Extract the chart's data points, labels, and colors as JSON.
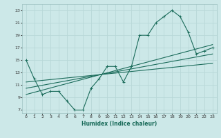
{
  "xlabel": "Humidex (Indice chaleur)",
  "background_color": "#cce8e8",
  "grid_color": "#b8d8d8",
  "line_color": "#1a6b5a",
  "xlim": [
    -0.5,
    23.5
  ],
  "ylim": [
    6.5,
    24
  ],
  "xticks": [
    0,
    1,
    2,
    3,
    4,
    5,
    6,
    7,
    8,
    9,
    10,
    11,
    12,
    13,
    14,
    15,
    16,
    17,
    18,
    19,
    20,
    21,
    22,
    23
  ],
  "yticks": [
    7,
    9,
    11,
    13,
    15,
    17,
    19,
    21,
    23
  ],
  "line1_x": [
    0,
    1,
    2,
    3,
    4,
    5,
    6,
    7,
    8,
    9,
    10,
    11,
    12,
    13,
    14,
    15,
    16,
    17,
    18,
    19,
    20,
    21,
    22,
    23
  ],
  "line1_y": [
    15,
    12,
    9.5,
    10,
    10,
    8.5,
    7,
    7,
    10.5,
    12,
    14,
    14,
    11.5,
    14,
    19,
    19,
    21,
    22,
    23,
    22,
    19.5,
    16,
    16.5,
    17
  ],
  "line2_x": [
    0,
    23
  ],
  "line2_y": [
    9.5,
    17.5
  ],
  "line3_x": [
    0,
    23
  ],
  "line3_y": [
    10.5,
    16.0
  ],
  "line4_x": [
    0,
    23
  ],
  "line4_y": [
    11.5,
    14.5
  ]
}
